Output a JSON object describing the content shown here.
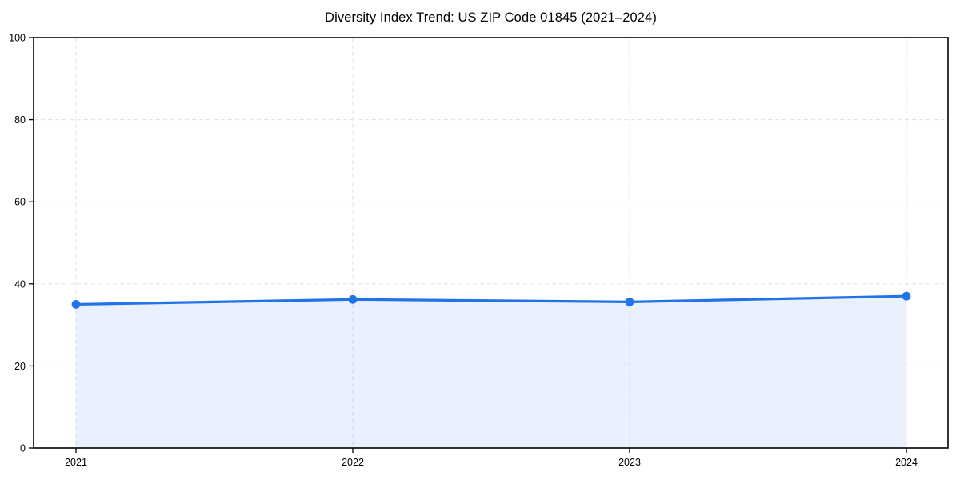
{
  "figure": {
    "background": "#ffffff"
  },
  "chart_data": {
    "type": "line",
    "title": "Diversity Index Trend: US ZIP Code 01845 (2021–2024)",
    "categories": [
      "2021",
      "2022",
      "2023",
      "2024"
    ],
    "series": [
      {
        "name": "Diversity Index",
        "values": [
          35.0,
          36.2,
          35.6,
          37.0
        ]
      }
    ],
    "xlabel": "",
    "ylabel": "",
    "ylim": [
      0,
      100
    ],
    "yticks": [
      0,
      20,
      40,
      60,
      80,
      100
    ],
    "grid": "dashed, horizontal and vertical",
    "legend": "none",
    "area_fill": true,
    "markers": "circle",
    "colors": {
      "line": "#2173e8",
      "marker": "#2173e8",
      "area_fill": "rgba(33,115,232,0.10)",
      "grid": "#e0e0e0",
      "axis": "#000000",
      "tick_text": "#000000",
      "title_text": "#000000"
    }
  }
}
